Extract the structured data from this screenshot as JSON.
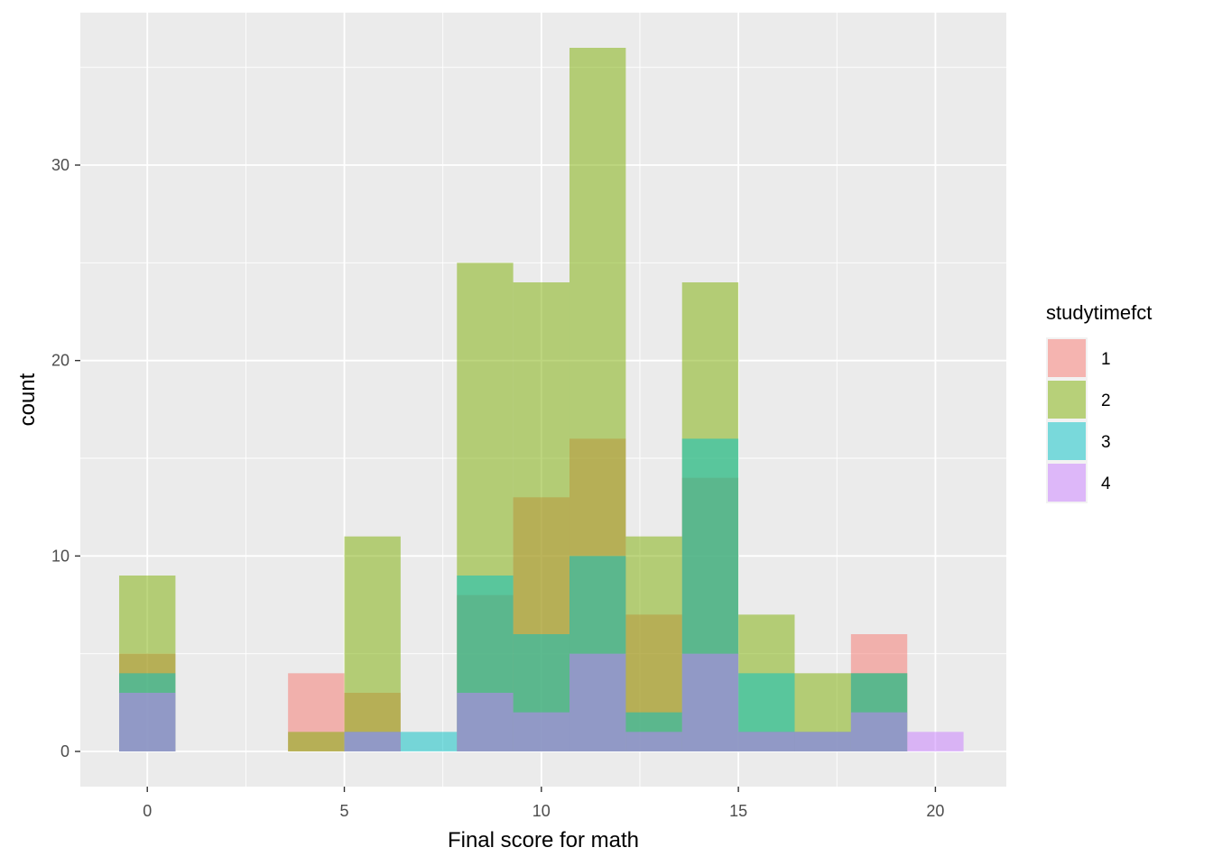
{
  "chart_data": {
    "type": "bar",
    "subtype": "overlaid-histogram",
    "xlabel": "Final score for math",
    "ylabel": "count",
    "xlim": [
      -1.7,
      21.8
    ],
    "ylim": [
      -1.8,
      37.8
    ],
    "x_ticks": [
      0,
      5,
      10,
      15,
      20
    ],
    "y_ticks": [
      0,
      10,
      20,
      30
    ],
    "bin_width": 1.4286,
    "bin_centers": [
      0,
      1.4286,
      2.8571,
      4.2857,
      5.7143,
      7.1429,
      8.5714,
      10,
      11.4286,
      12.8571,
      14.2857,
      15.7143,
      17.1429,
      18.5714,
      20
    ],
    "grid": true,
    "bar_opacity": 0.5,
    "legend": {
      "title": "studytimefct",
      "position": "right"
    },
    "series": [
      {
        "name": "1",
        "color": "#F8766D",
        "values": [
          5,
          0,
          0,
          4,
          3,
          0,
          8,
          13,
          16,
          7,
          14,
          1,
          1,
          6,
          0
        ]
      },
      {
        "name": "2",
        "color": "#7CAE00",
        "values": [
          9,
          0,
          0,
          1,
          11,
          0,
          25,
          24,
          36,
          11,
          24,
          7,
          4,
          4,
          0
        ]
      },
      {
        "name": "3",
        "color": "#00BFC4",
        "values": [
          4,
          0,
          0,
          0,
          1,
          1,
          9,
          6,
          10,
          2,
          16,
          4,
          1,
          4,
          0
        ]
      },
      {
        "name": "4",
        "color": "#C77CFF",
        "values": [
          3,
          0,
          0,
          0,
          1,
          0,
          3,
          2,
          5,
          1,
          5,
          1,
          1,
          2,
          1
        ]
      }
    ]
  }
}
